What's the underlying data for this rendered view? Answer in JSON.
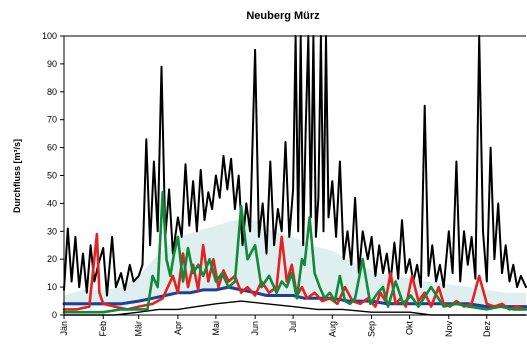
{
  "chart_data": {
    "type": "line",
    "title": "Neuberg Mürz",
    "xlabel": "",
    "ylabel": "Durchfluss [m³/s]",
    "ylim": [
      0,
      100
    ],
    "xlim": [
      0,
      365
    ],
    "yticks": [
      0,
      10,
      20,
      30,
      40,
      50,
      60,
      70,
      80,
      90,
      100
    ],
    "month_labels": [
      "Jän",
      "Feb",
      "Mär",
      "Apr",
      "Mai",
      "Jun",
      "Jul",
      "Aug",
      "Sep",
      "Okt",
      "Nov",
      "Dez"
    ],
    "month_starts": [
      0,
      31,
      59,
      90,
      120,
      151,
      181,
      212,
      243,
      273,
      304,
      334
    ],
    "grid": false,
    "legend": "none",
    "colors": {
      "band_fill": "#dfefef",
      "max": "#000000",
      "min": "#000000",
      "mean": "#1f3f99",
      "year_red": "#e32222",
      "year_green": "#118a3a",
      "axis": "#000000"
    },
    "band": {
      "x": [
        0,
        15,
        31,
        45,
        59,
        75,
        90,
        105,
        120,
        135,
        151,
        165,
        181,
        195,
        212,
        228,
        243,
        258,
        273,
        288,
        304,
        320,
        334,
        350,
        365
      ],
      "lower": [
        3,
        3,
        3,
        3,
        4,
        7,
        8,
        8,
        9,
        9,
        8,
        7,
        7,
        6,
        6,
        5,
        5,
        4,
        4,
        4,
        4,
        4,
        3,
        3,
        3
      ],
      "upper": [
        7,
        9,
        9,
        10,
        14,
        22,
        28,
        30,
        32,
        34,
        34,
        30,
        28,
        25,
        23,
        19,
        16,
        14,
        13,
        12,
        11,
        10,
        9,
        8,
        8
      ]
    },
    "series": [
      {
        "role": "max",
        "x": [
          0,
          3,
          6,
          9,
          12,
          15,
          18,
          21,
          24,
          27,
          31,
          34,
          38,
          41,
          45,
          48,
          52,
          55,
          59,
          62,
          65,
          68,
          71,
          74,
          77,
          80,
          83,
          86,
          90,
          93,
          96,
          99,
          102,
          105,
          108,
          111,
          114,
          117,
          120,
          123,
          126,
          129,
          132,
          135,
          138,
          141,
          144,
          147,
          151,
          154,
          157,
          160,
          163,
          166,
          169,
          172,
          175,
          178,
          181,
          183,
          185,
          187,
          189,
          191,
          193,
          195,
          197,
          199,
          201,
          203,
          205,
          207,
          209,
          212,
          215,
          218,
          221,
          224,
          227,
          230,
          233,
          236,
          240,
          243,
          246,
          249,
          252,
          255,
          258,
          261,
          264,
          267,
          270,
          273,
          276,
          279,
          282,
          285,
          288,
          291,
          294,
          297,
          300,
          304,
          307,
          310,
          313,
          316,
          319,
          322,
          325,
          328,
          331,
          334,
          337,
          340,
          343,
          346,
          349,
          352,
          355,
          358,
          361,
          365
        ],
        "values": [
          9,
          31,
          12,
          28,
          10,
          22,
          8,
          25,
          12,
          18,
          24,
          7,
          28,
          10,
          15,
          9,
          18,
          12,
          14,
          18,
          63,
          25,
          55,
          30,
          89,
          28,
          45,
          22,
          35,
          28,
          54,
          32,
          48,
          30,
          52,
          34,
          44,
          38,
          50,
          42,
          57,
          45,
          56,
          38,
          50,
          25,
          40,
          30,
          95,
          28,
          40,
          22,
          55,
          25,
          38,
          30,
          62,
          28,
          45,
          100,
          30,
          100,
          25,
          68,
          100,
          35,
          100,
          28,
          42,
          100,
          30,
          100,
          35,
          48,
          28,
          55,
          20,
          30,
          18,
          42,
          15,
          30,
          20,
          28,
          14,
          25,
          15,
          22,
          12,
          26,
          13,
          34,
          15,
          20,
          12,
          18,
          10,
          75,
          14,
          25,
          12,
          18,
          10,
          30,
          15,
          55,
          12,
          30,
          18,
          28,
          13,
          100,
          30,
          12,
          60,
          20,
          40,
          15,
          25,
          12,
          18,
          10,
          14,
          10
        ]
      },
      {
        "role": "min",
        "x": [
          0,
          20,
          40,
          59,
          75,
          90,
          105,
          120,
          140,
          160,
          181,
          200,
          220,
          243,
          260,
          273,
          290,
          304,
          320,
          334,
          350,
          365
        ],
        "values": [
          0,
          0,
          0,
          1,
          2,
          2,
          3,
          4,
          5,
          4,
          3,
          2,
          2,
          1,
          1,
          1,
          0,
          0,
          0,
          0,
          0,
          0
        ]
      },
      {
        "role": "mean",
        "x": [
          0,
          15,
          31,
          45,
          59,
          70,
          80,
          90,
          100,
          110,
          120,
          130,
          140,
          151,
          160,
          170,
          181,
          190,
          200,
          212,
          225,
          243,
          255,
          273,
          290,
          304,
          320,
          334,
          350,
          365
        ],
        "values": [
          4,
          4,
          4,
          4,
          5,
          6,
          7,
          8,
          8,
          9,
          9,
          10,
          9,
          8,
          7,
          7,
          7,
          6,
          6,
          6,
          5,
          5,
          4,
          4,
          4,
          4,
          4,
          3,
          3,
          3
        ]
      },
      {
        "role": "year_red",
        "x": [
          0,
          10,
          20,
          26,
          28,
          31,
          40,
          50,
          59,
          70,
          78,
          82,
          86,
          90,
          94,
          98,
          102,
          106,
          110,
          114,
          118,
          122,
          126,
          130,
          135,
          140,
          145,
          151,
          156,
          162,
          168,
          172,
          176,
          180,
          184,
          188,
          192,
          198,
          204,
          210,
          216,
          222,
          228,
          234,
          240,
          246,
          250,
          254,
          258,
          262,
          266,
          270,
          275,
          280,
          285,
          290,
          296,
          300,
          305,
          310,
          316,
          322,
          328,
          334,
          340,
          346,
          352,
          358,
          365
        ],
        "values": [
          2,
          2,
          3,
          29,
          8,
          4,
          3,
          2,
          3,
          4,
          6,
          10,
          14,
          8,
          22,
          10,
          18,
          9,
          25,
          12,
          20,
          10,
          16,
          12,
          14,
          8,
          10,
          7,
          12,
          8,
          10,
          28,
          12,
          18,
          7,
          10,
          6,
          8,
          5,
          6,
          4,
          10,
          5,
          4,
          6,
          3,
          8,
          5,
          15,
          4,
          6,
          3,
          14,
          5,
          8,
          3,
          10,
          4,
          3,
          5,
          3,
          4,
          14,
          4,
          3,
          4,
          2,
          3,
          2
        ]
      },
      {
        "role": "year_green",
        "x": [
          0,
          15,
          31,
          45,
          59,
          66,
          70,
          74,
          78,
          81,
          84,
          87,
          90,
          94,
          98,
          102,
          106,
          110,
          115,
          120,
          125,
          130,
          135,
          140,
          145,
          151,
          156,
          162,
          168,
          172,
          176,
          180,
          184,
          188,
          190,
          194,
          198,
          202,
          206,
          210,
          214,
          218,
          222,
          226,
          230,
          236,
          242,
          248,
          252,
          256,
          262,
          268,
          274,
          280,
          290,
          300,
          310,
          320,
          334,
          345,
          355,
          365
        ],
        "values": [
          1,
          1,
          1,
          2,
          2,
          2,
          14,
          10,
          44,
          20,
          14,
          22,
          28,
          12,
          24,
          15,
          18,
          14,
          20,
          12,
          15,
          10,
          12,
          39,
          20,
          25,
          10,
          14,
          8,
          12,
          10,
          15,
          6,
          20,
          18,
          35,
          15,
          10,
          6,
          8,
          5,
          14,
          5,
          4,
          6,
          20,
          4,
          8,
          10,
          3,
          12,
          4,
          7,
          3,
          10,
          3,
          4,
          3,
          2,
          3,
          2,
          2
        ]
      }
    ]
  }
}
